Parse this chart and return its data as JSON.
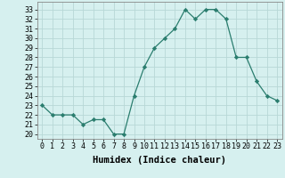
{
  "hours": [
    0,
    1,
    2,
    3,
    4,
    5,
    6,
    7,
    8,
    9,
    10,
    11,
    12,
    13,
    14,
    15,
    16,
    17,
    18,
    19,
    20,
    21,
    22,
    23
  ],
  "values": [
    23.0,
    22.0,
    22.0,
    22.0,
    21.0,
    21.5,
    21.5,
    20.0,
    20.0,
    24.0,
    27.0,
    29.0,
    30.0,
    31.0,
    33.0,
    32.0,
    33.0,
    33.0,
    32.0,
    28.0,
    28.0,
    25.5,
    24.0,
    23.5
  ],
  "line_color": "#2a7d6e",
  "marker": "D",
  "marker_size": 2.2,
  "bg_color": "#d6f0ef",
  "grid_color": "#b8d8d6",
  "xlabel": "Humidex (Indice chaleur)",
  "ylabel_ticks": [
    20,
    21,
    22,
    23,
    24,
    25,
    26,
    27,
    28,
    29,
    30,
    31,
    32,
    33
  ],
  "ylim": [
    19.5,
    33.8
  ],
  "xlim": [
    -0.5,
    23.5
  ],
  "label_fontsize": 7.5,
  "tick_fontsize": 6.0
}
